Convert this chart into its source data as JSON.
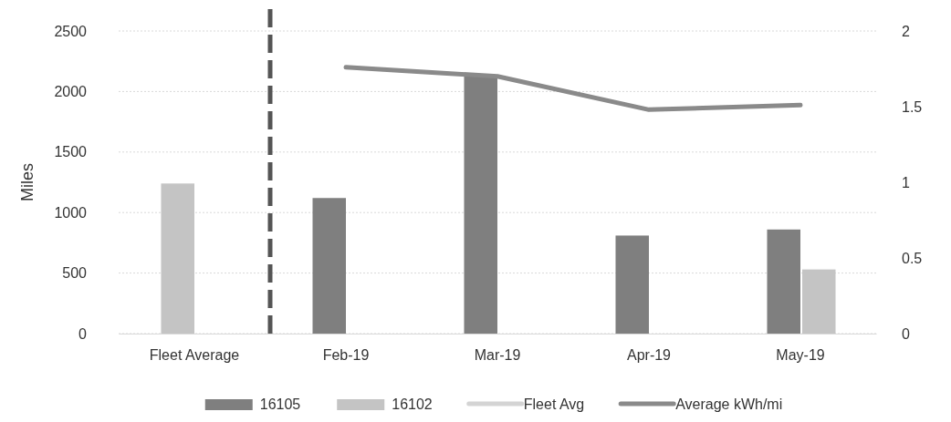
{
  "chart_data": {
    "type": "bar",
    "ylabel": "Miles",
    "categories": [
      "Fleet Average",
      "Feb-19",
      "Mar-19",
      "Apr-19",
      "May-19"
    ],
    "series": [
      {
        "name": "16105",
        "color": "#7f7f7f",
        "colors": [
          "#c4c4c4",
          "#7f7f7f",
          "#7f7f7f",
          "#7f7f7f",
          "#7f7f7f"
        ],
        "values": [
          1240,
          1120,
          2130,
          810,
          860
        ]
      },
      {
        "name": "16102",
        "color": "#c4c4c4",
        "values": [
          null,
          null,
          null,
          null,
          530
        ]
      },
      {
        "name": "Fleet Avg",
        "type": "line",
        "axis": "y2",
        "color": "#d4d4d4",
        "values": [
          null,
          null,
          null,
          null,
          null
        ]
      },
      {
        "name": "Average kWh/mi",
        "type": "line",
        "axis": "y2",
        "color": "#8a8a8a",
        "values": [
          null,
          1.76,
          1.7,
          1.48,
          1.51
        ]
      }
    ],
    "ylim": [
      0,
      2500
    ],
    "yticks": [
      0,
      500,
      1000,
      1500,
      2000,
      2500
    ],
    "y2lim": [
      0,
      2
    ],
    "y2ticks": [
      0,
      0.5,
      1,
      1.5,
      2
    ],
    "grid": "y",
    "legend": "bottom"
  }
}
